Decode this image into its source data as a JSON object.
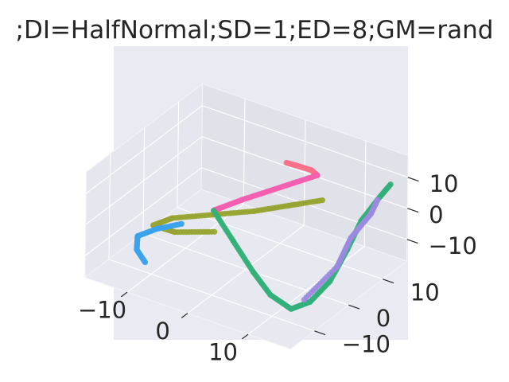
{
  "chart_data": {
    "type": "scatter3d",
    "title": ";DI=HalfNormal;SD=1;ED=8;GM=rand",
    "xlabel": "",
    "ylabel": "",
    "zlabel": "",
    "x_ticks": [
      "−10",
      "0",
      "10"
    ],
    "y_ticks": [
      "−10",
      "0",
      "10"
    ],
    "z_ticks": [
      "−10",
      "0",
      "10"
    ],
    "grid": true,
    "background": "#eaeaf2",
    "series": [
      {
        "color": "#f77189",
        "points": [
          [
            2,
            8,
            12
          ],
          [
            3,
            9,
            11
          ],
          [
            5,
            10,
            10
          ],
          [
            6,
            10,
            9
          ]
        ]
      },
      {
        "color": "#f45fb0",
        "points": [
          [
            6,
            10,
            9
          ],
          [
            3,
            8,
            6
          ],
          [
            0,
            6,
            3
          ],
          [
            -3,
            4,
            0
          ],
          [
            -5,
            2,
            -2
          ],
          [
            -6,
            1,
            -3
          ]
        ]
      },
      {
        "color": "#97a431",
        "points": [
          [
            8,
            8,
            4
          ],
          [
            4,
            5,
            2
          ],
          [
            0,
            2,
            0
          ],
          [
            -5,
            -1,
            -2
          ],
          [
            -10,
            -4,
            -4
          ],
          [
            -12,
            -6,
            -6
          ],
          [
            -9,
            -5,
            -7
          ],
          [
            -4,
            -2,
            -6
          ]
        ]
      },
      {
        "color": "#3ba3ec",
        "points": [
          [
            -9,
            -3,
            -6
          ],
          [
            -12,
            -5,
            -8
          ],
          [
            -14,
            -7,
            -10
          ],
          [
            -13,
            -9,
            -12
          ],
          [
            -11,
            -10,
            -14
          ]
        ]
      },
      {
        "color": "#33b07a",
        "points": [
          [
            -6,
            1,
            -3
          ],
          [
            -1,
            -2,
            -7
          ],
          [
            4,
            -5,
            -11
          ],
          [
            8,
            -7,
            -14
          ],
          [
            12,
            -8,
            -15
          ],
          [
            14,
            -6,
            -13
          ],
          [
            15,
            -2,
            -9
          ],
          [
            15,
            3,
            -3
          ],
          [
            15,
            7,
            3
          ],
          [
            16,
            10,
            8
          ],
          [
            17,
            12,
            12
          ]
        ]
      },
      {
        "color": "#9b8ae0",
        "points": [
          [
            13,
            -6,
            -13
          ],
          [
            15,
            0,
            -6
          ],
          [
            15,
            4,
            0
          ],
          [
            16,
            8,
            5
          ],
          [
            16,
            10,
            8
          ]
        ]
      }
    ]
  }
}
